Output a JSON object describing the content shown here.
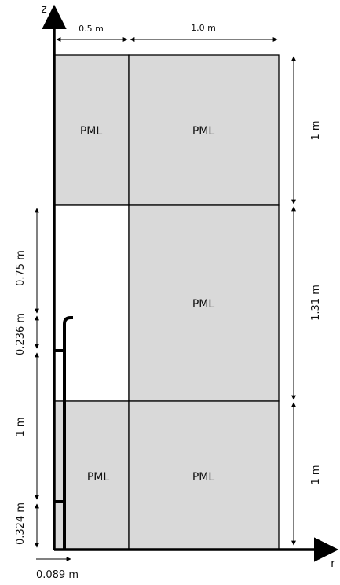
{
  "axes": {
    "z_label": "z",
    "r_label": "r"
  },
  "colors": {
    "pml_fill": "#d9d9d9",
    "line": "#000000",
    "background": "#ffffff"
  },
  "top_dims": {
    "inner_width": "0.5 m",
    "outer_width": "1.0 m"
  },
  "right_dims": {
    "top": "1 m",
    "middle": "1.31 m",
    "bottom": "1 m"
  },
  "left_dims": {
    "d1": "0.75 m",
    "d2": "0.236 m",
    "d3": "1 m",
    "d4": "0.324 m"
  },
  "bottom_dims": {
    "offset": "0.089 m"
  },
  "regions": {
    "top_left": "PML",
    "top_right": "PML",
    "middle_right": "PML",
    "bottom_left": "PML",
    "bottom_right": "PML"
  }
}
